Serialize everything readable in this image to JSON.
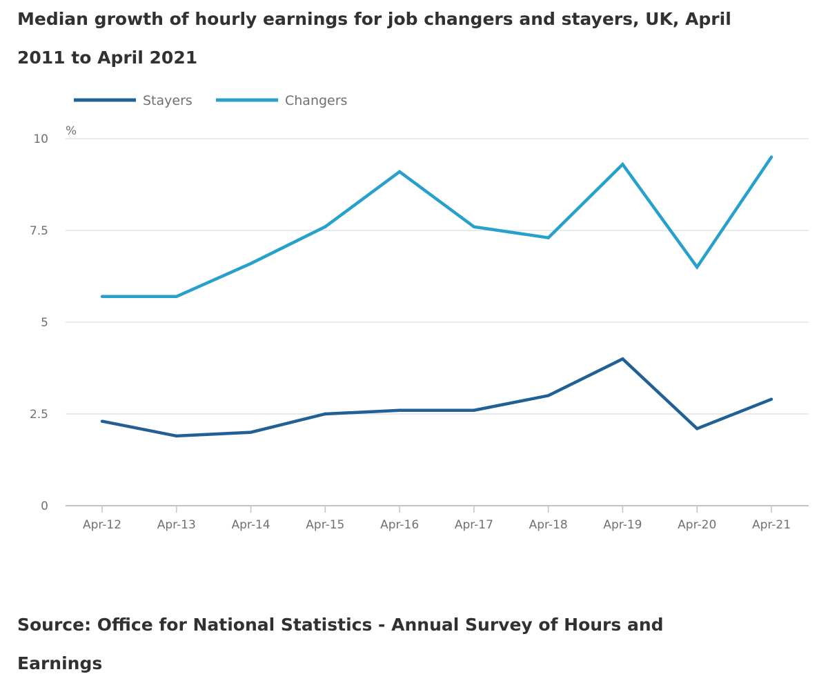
{
  "title": "Median growth of hourly earnings for job changers and stayers, UK, April 2011 to April 2021",
  "source": "Source: Office for National Statistics - Annual Survey of Hours and Earnings",
  "colors": {
    "stayers": "#206095",
    "changers": "#27a0cc",
    "grid": "#e0e3e6",
    "axis": "#bcc4cc",
    "text": "#707070"
  },
  "chart_data": {
    "type": "line",
    "title": "Median growth of hourly earnings for job changers and stayers, UK, April 2011 to April 2021",
    "xlabel": "",
    "ylabel": "%",
    "ylim": [
      0,
      10
    ],
    "yticks": [
      "0",
      "2.5",
      "5",
      "7.5",
      "10"
    ],
    "ytick_values": [
      0,
      2.5,
      5,
      7.5,
      10
    ],
    "grid": true,
    "legend_position": "top-left",
    "categories": [
      "Apr-12",
      "Apr-13",
      "Apr-14",
      "Apr-15",
      "Apr-16",
      "Apr-17",
      "Apr-18",
      "Apr-19",
      "Apr-20",
      "Apr-21"
    ],
    "series": [
      {
        "name": "Stayers",
        "values": [
          2.3,
          1.9,
          2.0,
          2.5,
          2.6,
          2.6,
          3.0,
          4.0,
          2.1,
          2.9
        ]
      },
      {
        "name": "Changers",
        "values": [
          5.7,
          5.7,
          6.6,
          7.6,
          9.1,
          7.6,
          7.3,
          9.3,
          6.5,
          9.5
        ]
      }
    ]
  }
}
